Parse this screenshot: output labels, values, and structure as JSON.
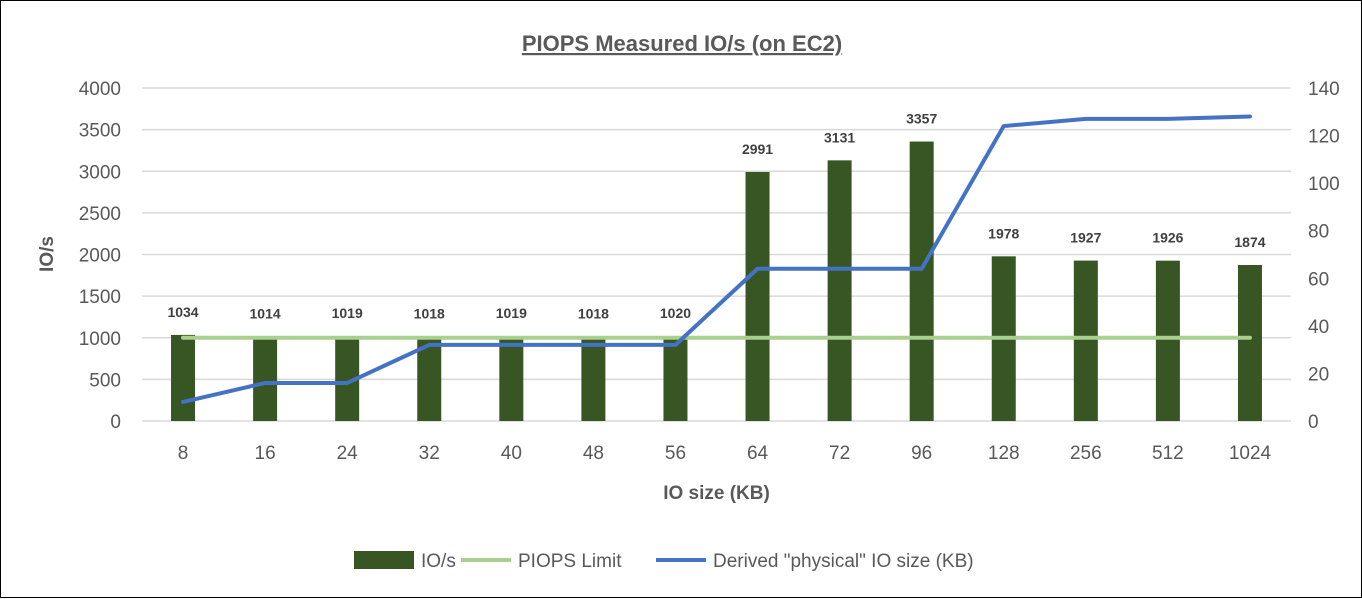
{
  "chart_data": {
    "type": "bar",
    "title": "PIOPS Measured IO/s (on EC2)",
    "xlabel": "IO size (KB)",
    "ylabel": "IO/s",
    "ylim": [
      0,
      4000
    ],
    "y2lim": [
      0,
      140
    ],
    "yticks": [
      0,
      500,
      1000,
      1500,
      2000,
      2500,
      3000,
      3500,
      4000
    ],
    "y2ticks": [
      0,
      20,
      40,
      60,
      80,
      100,
      120,
      140
    ],
    "grid": true,
    "legend_position": "bottom",
    "categories": [
      "8",
      "16",
      "24",
      "32",
      "40",
      "48",
      "56",
      "64",
      "72",
      "96",
      "128",
      "256",
      "512",
      "1024"
    ],
    "series": [
      {
        "name": "IO/s",
        "type": "bar",
        "axis": "left",
        "color": "#375623",
        "values": [
          1034,
          1014,
          1019,
          1018,
          1019,
          1018,
          1020,
          2991,
          3131,
          3357,
          1978,
          1927,
          1926,
          1874
        ],
        "data_labels": true
      },
      {
        "name": "PIOPS Limit",
        "type": "line",
        "axis": "left",
        "color": "#A9D08E",
        "values": [
          1000,
          1000,
          1000,
          1000,
          1000,
          1000,
          1000,
          1000,
          1000,
          1000,
          1000,
          1000,
          1000,
          1000
        ]
      },
      {
        "name": "Derived \"physical\" IO size (KB)",
        "type": "line",
        "axis": "right",
        "color": "#4472C4",
        "values": [
          8,
          16,
          16,
          32,
          32,
          32,
          32,
          64,
          64,
          64,
          124,
          127,
          127,
          128
        ]
      }
    ]
  }
}
